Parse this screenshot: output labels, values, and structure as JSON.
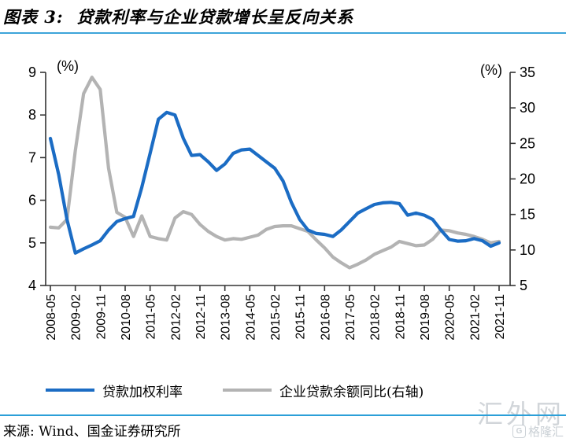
{
  "title": "图表 3:  贷款利率与企业贷款增长呈反向关系",
  "source": "来源:  Wind、国金证券研究所",
  "watermark": {
    "primary": "汇外网",
    "secondary": "格隆汇",
    "icon": "G"
  },
  "colors": {
    "loan_rate_line": "#1b6cc4",
    "corp_loan_line": "#b3b3b3",
    "rule_blue": "#2b9fd8",
    "axis": "#333333",
    "watermark_gray": "#c9ced3"
  },
  "axes": {
    "left_unit": "(%)",
    "right_unit": "(%)",
    "left_ticks": [
      9,
      8,
      7,
      6,
      5,
      4
    ],
    "right_ticks": [
      35,
      30,
      25,
      20,
      15,
      10,
      5
    ]
  },
  "legend": [
    {
      "label": "贷款加权利率",
      "color": "#1b6cc4"
    },
    {
      "label": "企业贷款余额同比(右轴)",
      "color": "#b3b3b3"
    }
  ],
  "chart_data": {
    "type": "line",
    "title": "贷款利率与企业贷款增长呈反向关系",
    "x_label_every": 3,
    "left_ylim": [
      4,
      9
    ],
    "right_ylim": [
      5,
      35
    ],
    "grid": false,
    "legend_position": "bottom",
    "categories": [
      "2008-05",
      "2008-08",
      "2008-11",
      "2009-02",
      "2009-05",
      "2009-08",
      "2009-11",
      "2010-02",
      "2010-05",
      "2010-08",
      "2010-11",
      "2011-02",
      "2011-05",
      "2011-08",
      "2011-11",
      "2012-02",
      "2012-05",
      "2012-08",
      "2012-11",
      "2013-02",
      "2013-05",
      "2013-08",
      "2013-11",
      "2014-02",
      "2014-05",
      "2014-08",
      "2014-11",
      "2015-02",
      "2015-05",
      "2015-08",
      "2015-11",
      "2016-02",
      "2016-05",
      "2016-08",
      "2016-11",
      "2017-02",
      "2017-05",
      "2017-08",
      "2017-11",
      "2018-02",
      "2018-05",
      "2018-08",
      "2018-11",
      "2019-02",
      "2019-05",
      "2019-08",
      "2019-11",
      "2020-02",
      "2020-05",
      "2020-08",
      "2020-11",
      "2021-02",
      "2021-05",
      "2021-08",
      "2021-11"
    ],
    "series": [
      {
        "name": "贷款加权利率",
        "axis": "left",
        "color": "#1b6cc4",
        "values": [
          7.45,
          6.6,
          5.55,
          4.76,
          4.86,
          4.95,
          5.05,
          5.3,
          5.5,
          5.57,
          5.62,
          6.3,
          7.1,
          7.9,
          8.06,
          8.0,
          7.45,
          7.05,
          7.07,
          6.9,
          6.7,
          6.85,
          7.1,
          7.18,
          7.2,
          7.05,
          6.9,
          6.75,
          6.45,
          5.95,
          5.55,
          5.3,
          5.22,
          5.2,
          5.15,
          5.3,
          5.5,
          5.7,
          5.8,
          5.9,
          5.94,
          5.95,
          5.92,
          5.65,
          5.7,
          5.65,
          5.55,
          5.3,
          5.08,
          5.04,
          5.05,
          5.1,
          5.05,
          4.92,
          5.0
        ]
      },
      {
        "name": "企业贷款余额同比(右轴)",
        "axis": "right",
        "color": "#b3b3b3",
        "values": [
          13.2,
          13.1,
          14.3,
          24.0,
          32.0,
          34.3,
          32.6,
          21.5,
          15.3,
          14.6,
          11.9,
          14.8,
          11.9,
          11.6,
          11.4,
          14.5,
          15.4,
          15.0,
          13.6,
          12.6,
          11.9,
          11.4,
          11.6,
          11.5,
          11.8,
          12.1,
          12.9,
          13.3,
          13.4,
          13.4,
          13.0,
          12.6,
          11.4,
          10.3,
          9.0,
          8.2,
          7.5,
          8.0,
          8.6,
          9.4,
          9.9,
          10.4,
          11.2,
          10.9,
          10.6,
          10.7,
          11.5,
          12.8,
          12.7,
          12.4,
          12.2,
          11.9,
          11.5,
          11.0,
          11.2
        ]
      }
    ]
  }
}
